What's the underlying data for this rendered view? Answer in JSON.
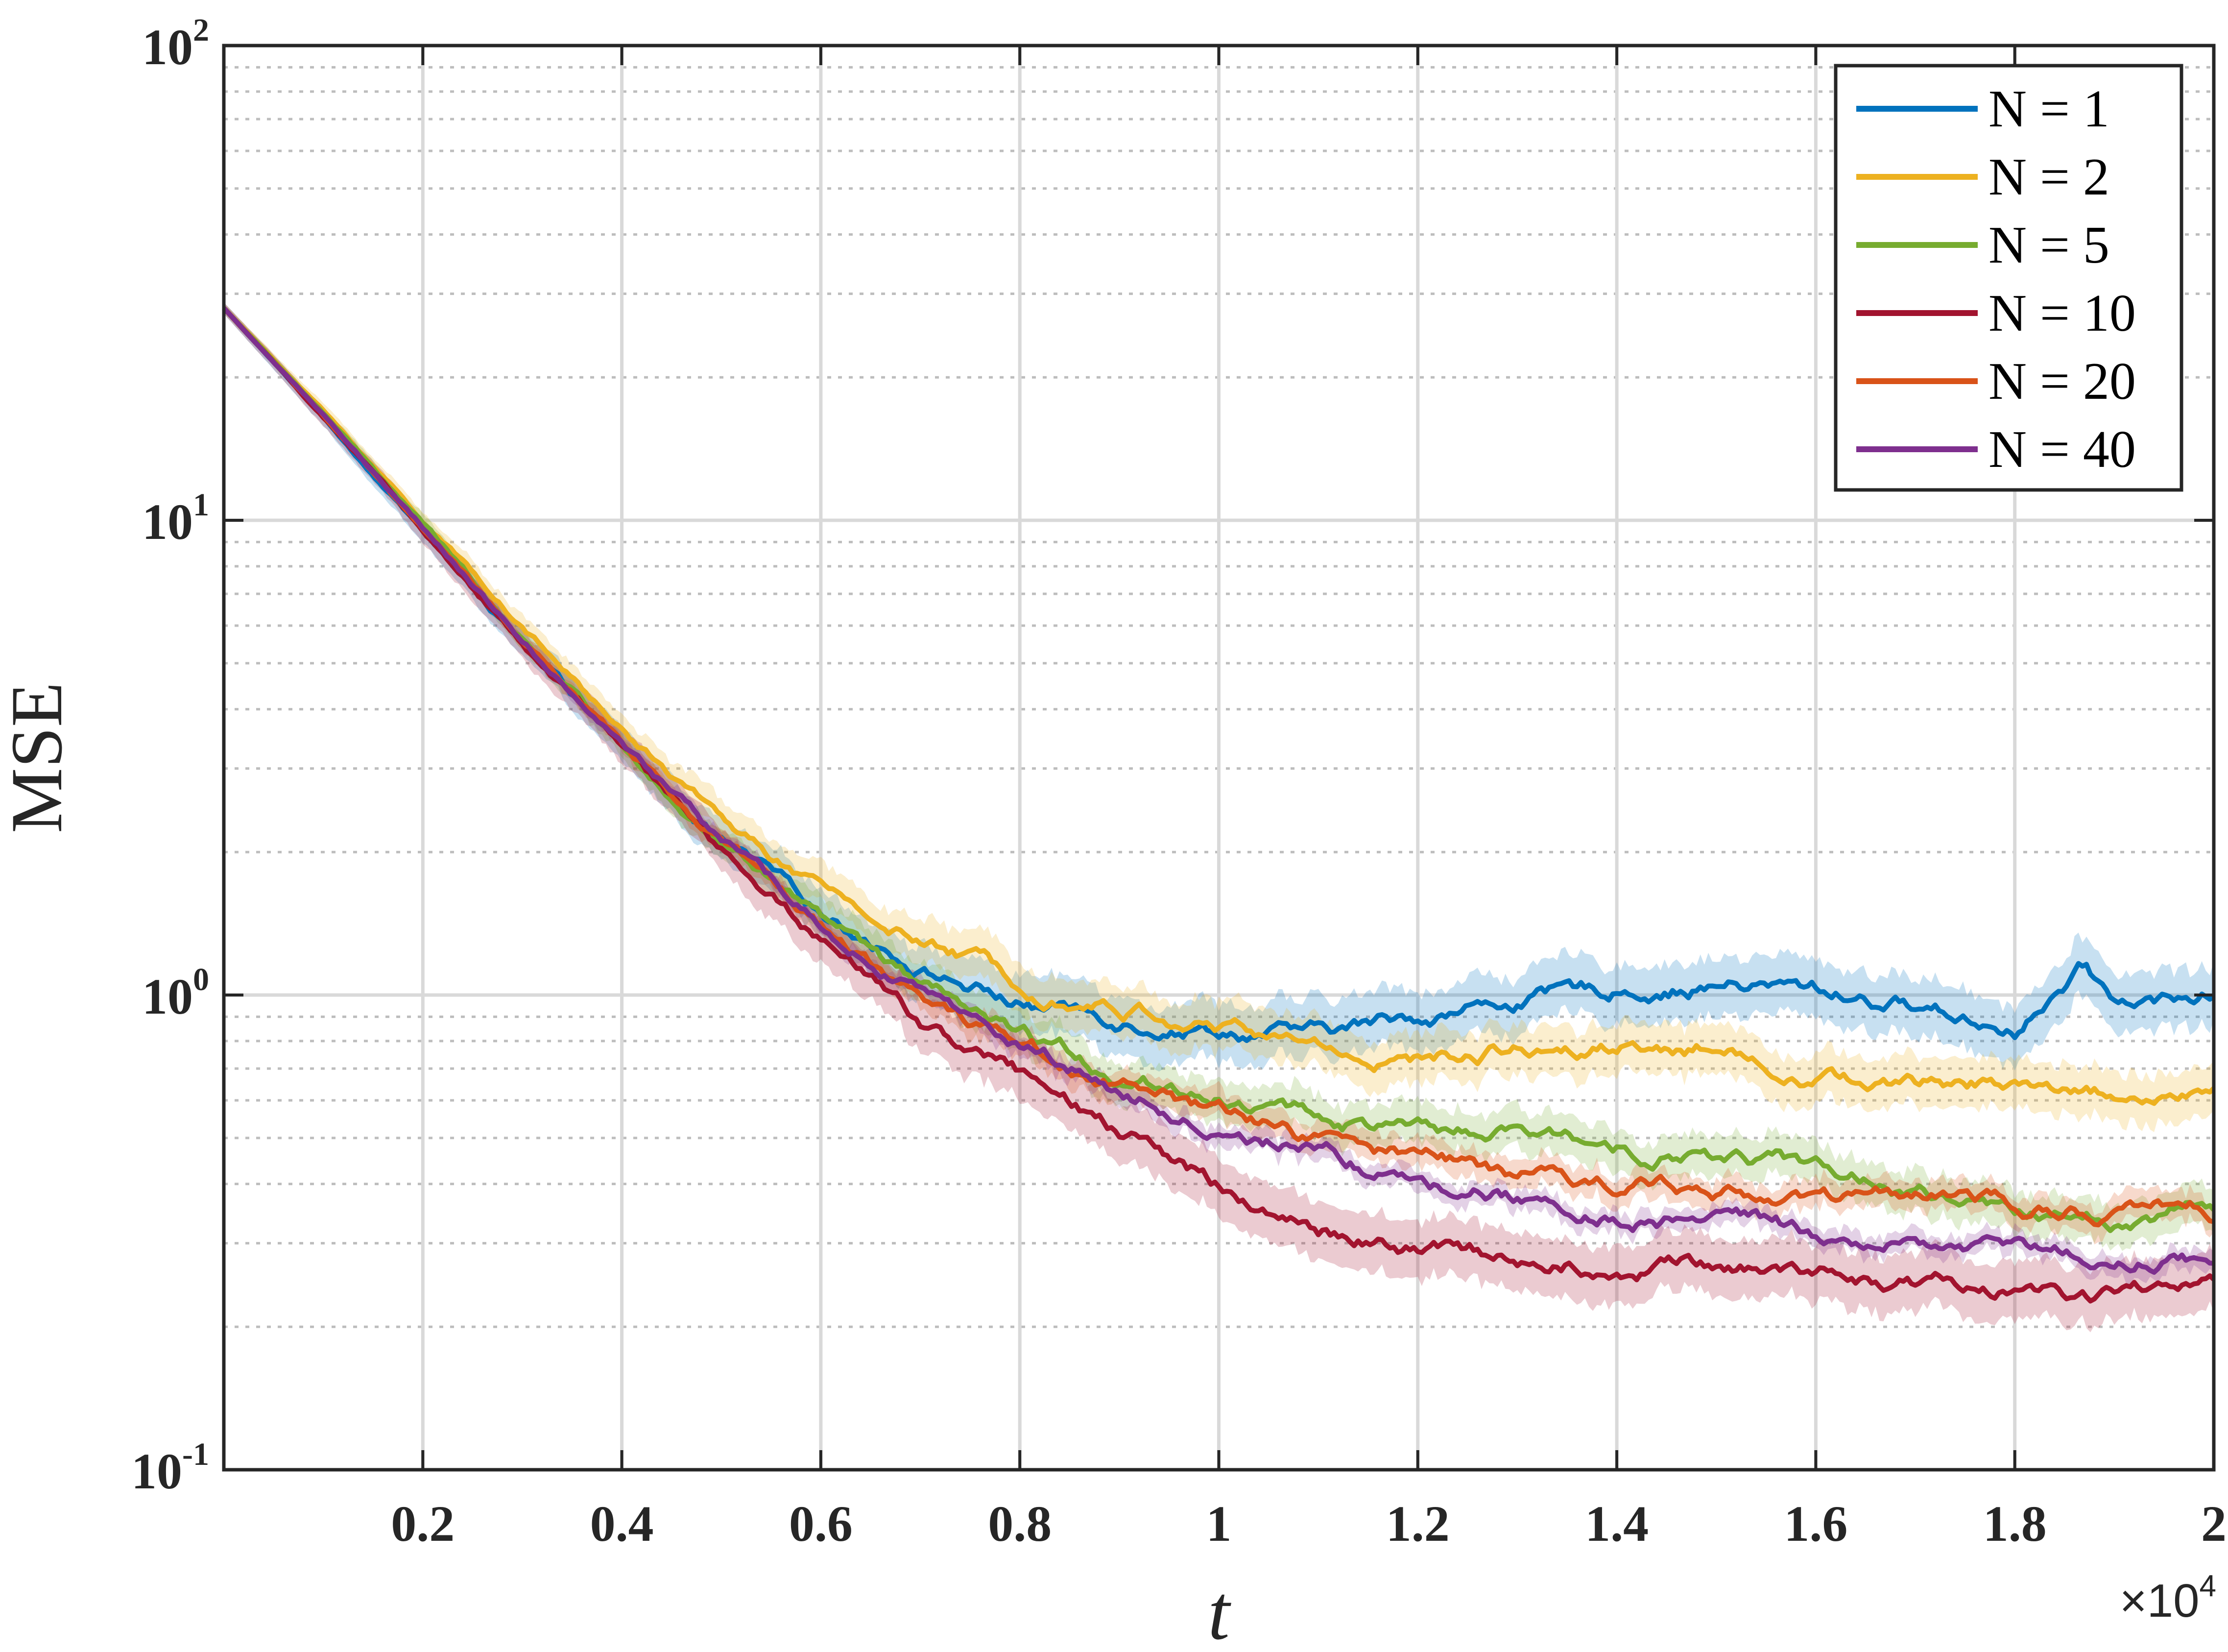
{
  "chart_data": {
    "type": "line",
    "title": "",
    "xlabel": "t",
    "ylabel": "MSE",
    "x_multiplier": "×10",
    "x_multiplier_exponent": "4",
    "xlim": [
      0,
      20000
    ],
    "ylim": [
      0.1,
      100
    ],
    "yscale": "log",
    "grid": true,
    "legend_position": "top-right",
    "x_ticks": [
      {
        "value": 2000,
        "label": "0.2"
      },
      {
        "value": 4000,
        "label": "0.4"
      },
      {
        "value": 6000,
        "label": "0.6"
      },
      {
        "value": 8000,
        "label": "0.8"
      },
      {
        "value": 10000,
        "label": "1"
      },
      {
        "value": 12000,
        "label": "1.2"
      },
      {
        "value": 14000,
        "label": "1.4"
      },
      {
        "value": 16000,
        "label": "1.6"
      },
      {
        "value": 18000,
        "label": "1.8"
      },
      {
        "value": 20000,
        "label": "2"
      }
    ],
    "y_ticks": [
      {
        "value": 100,
        "base": "10",
        "exp": "2"
      },
      {
        "value": 10,
        "base": "10",
        "exp": "1"
      },
      {
        "value": 1,
        "base": "10",
        "exp": "0"
      },
      {
        "value": 0.1,
        "base": "10",
        "exp": "-1"
      }
    ],
    "x": [
      0,
      1000,
      2000,
      3000,
      4000,
      5000,
      6000,
      7000,
      8000,
      9000,
      10000,
      11000,
      12000,
      13000,
      14000,
      15000,
      16000,
      17000,
      18000,
      18700,
      19000,
      20000
    ],
    "series": [
      {
        "name": "N = 1",
        "color": "#0072BD",
        "values": [
          28,
          16.5,
          9.5,
          5.5,
          3.3,
          2.1,
          1.5,
          1.15,
          0.96,
          0.9,
          0.86,
          0.82,
          0.9,
          0.98,
          1.02,
          1.06,
          1.02,
          0.95,
          0.86,
          1.12,
          0.96,
          1.0
        ],
        "band": 0.14
      },
      {
        "name": "N = 2",
        "color": "#EDB120",
        "values": [
          28,
          17,
          10,
          6,
          3.6,
          2.35,
          1.65,
          1.3,
          1.08,
          0.95,
          0.86,
          0.78,
          0.72,
          0.78,
          0.8,
          0.78,
          0.68,
          0.64,
          0.66,
          0.63,
          0.62,
          0.62
        ],
        "band": 0.12
      },
      {
        "name": "N = 5",
        "color": "#77AC30",
        "values": [
          28,
          16.8,
          9.8,
          5.7,
          3.4,
          2.1,
          1.45,
          1.02,
          0.8,
          0.68,
          0.62,
          0.56,
          0.51,
          0.5,
          0.48,
          0.46,
          0.43,
          0.38,
          0.34,
          0.34,
          0.34,
          0.36
        ],
        "band": 0.1
      },
      {
        "name": "N = 10",
        "color": "#A2142F",
        "values": [
          28,
          16.5,
          9.5,
          5.5,
          3.3,
          2.0,
          1.3,
          0.88,
          0.68,
          0.5,
          0.4,
          0.32,
          0.29,
          0.28,
          0.27,
          0.27,
          0.26,
          0.25,
          0.24,
          0.23,
          0.23,
          0.245
        ],
        "band": 0.14
      },
      {
        "name": "N = 20",
        "color": "#D95319",
        "values": [
          28,
          16.6,
          9.6,
          5.6,
          3.35,
          2.1,
          1.4,
          1.0,
          0.8,
          0.66,
          0.56,
          0.49,
          0.45,
          0.42,
          0.4,
          0.39,
          0.38,
          0.37,
          0.36,
          0.35,
          0.35,
          0.35
        ],
        "band": 0.07
      },
      {
        "name": "N = 40",
        "color": "#7E2F8E",
        "values": [
          28,
          16.6,
          9.6,
          5.6,
          3.35,
          2.1,
          1.4,
          1.0,
          0.78,
          0.63,
          0.52,
          0.46,
          0.41,
          0.38,
          0.35,
          0.33,
          0.31,
          0.3,
          0.29,
          0.285,
          0.28,
          0.275
        ],
        "band": 0.05
      }
    ]
  }
}
